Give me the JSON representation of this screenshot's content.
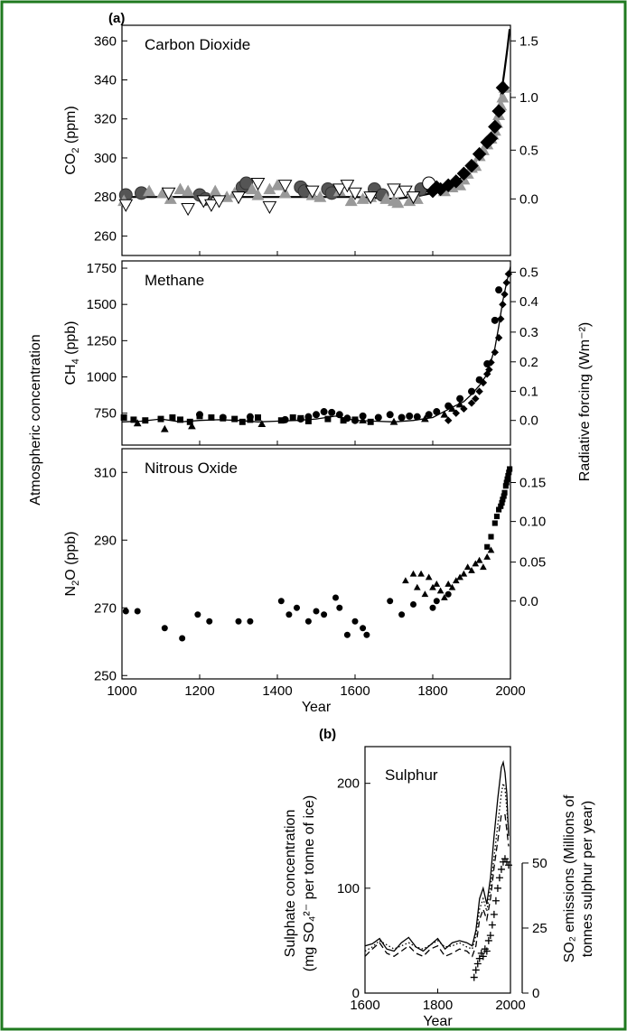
{
  "figure": {
    "frame_color": "#1f7a1f",
    "left_label": "Atmospheric concentration",
    "right_label": "Radiative forcing (Wm⁻²)"
  },
  "chart_data": [
    {
      "id": "co2",
      "panel_label": "(a)",
      "type": "scatter",
      "title": "Carbon Dioxide",
      "ylabel": "CO₂ (ppm)",
      "y2label": "",
      "xlim": [
        1000,
        2000
      ],
      "ylim": [
        250,
        368
      ],
      "yticks": [
        260,
        280,
        300,
        320,
        340,
        360
      ],
      "y2ticks": [
        {
          "label": "0.0",
          "y": 279
        },
        {
          "label": "0.5",
          "y": 304
        },
        {
          "label": "1.0",
          "y": 331
        },
        {
          "label": "1.5",
          "y": 360
        }
      ],
      "grid": false,
      "line": {
        "x": [
          1000,
          1200,
          1400,
          1600,
          1700,
          1750,
          1800,
          1850,
          1900,
          1925,
          1950,
          1965,
          1975,
          1985,
          1992,
          1998
        ],
        "y": [
          280,
          280,
          280,
          280,
          279,
          280,
          282,
          285,
          295,
          303,
          311,
          320,
          331,
          345,
          356,
          366
        ]
      },
      "series": [
        {
          "name": "",
          "marker": "circle",
          "color": "#555555",
          "x": [
            1010,
            1050,
            1200,
            1215,
            1310,
            1320,
            1460,
            1470,
            1530,
            1540,
            1650,
            1670,
            1770
          ],
          "y": [
            281,
            282,
            281,
            279,
            285,
            287,
            285,
            283,
            284,
            282,
            284,
            281,
            284
          ]
        },
        {
          "name": "",
          "marker": "triangle",
          "color": "#999999",
          "x": [
            1005,
            1070,
            1105,
            1125,
            1150,
            1170,
            1240,
            1270,
            1290,
            1335,
            1350,
            1380,
            1400,
            1420,
            1490,
            1510,
            1560,
            1590,
            1620,
            1640,
            1680,
            1700,
            1710,
            1740,
            1760,
            1830,
            1850,
            1860,
            1870,
            1880,
            1890,
            1900,
            1910,
            1920,
            1930,
            1940,
            1950,
            1955,
            1960,
            1965,
            1970,
            1975,
            1980,
            1985
          ],
          "y": [
            278,
            283,
            282,
            279,
            284,
            283,
            283,
            280,
            282,
            284,
            281,
            284,
            286,
            282,
            281,
            280,
            283,
            278,
            279,
            280,
            279,
            278,
            277,
            278,
            279,
            283,
            285,
            287,
            286,
            289,
            292,
            295,
            296,
            301,
            304,
            307,
            310,
            312,
            314,
            318,
            322,
            327,
            331,
            336
          ]
        },
        {
          "name": "",
          "marker": "triangle-down",
          "color": "#ffffff",
          "x": [
            1010,
            1120,
            1170,
            1210,
            1230,
            1250,
            1300,
            1350,
            1380,
            1420,
            1490,
            1560,
            1580,
            1600,
            1640,
            1700,
            1730,
            1750
          ],
          "y": [
            276,
            282,
            274,
            278,
            276,
            278,
            280,
            287,
            275,
            286,
            283,
            284,
            286,
            282,
            280,
            284,
            283,
            280
          ]
        },
        {
          "name": "",
          "marker": "circle-open",
          "color": "#ffffff",
          "x": [
            1790
          ],
          "y": [
            287
          ]
        },
        {
          "name": "",
          "marker": "diamond",
          "color": "#000000",
          "x": [
            1800,
            1810,
            1820,
            1840,
            1860,
            1880,
            1900,
            1920,
            1940,
            1950,
            1960,
            1970,
            1980
          ],
          "y": [
            283,
            285,
            284,
            286,
            288,
            292,
            296,
            302,
            308,
            310,
            316,
            324,
            336
          ]
        }
      ]
    },
    {
      "id": "ch4",
      "type": "scatter",
      "title": "Methane",
      "ylabel": "CH₄ (ppb)",
      "ylim": [
        530,
        1800
      ],
      "yticks": [
        750,
        1000,
        1250,
        1500,
        1750
      ],
      "y2ticks": [
        {
          "label": "0.0",
          "y": 700
        },
        {
          "label": "0.1",
          "y": 901
        },
        {
          "label": "0.2",
          "y": 1104
        },
        {
          "label": "0.3",
          "y": 1309
        },
        {
          "label": "0.4",
          "y": 1519
        },
        {
          "label": "0.5",
          "y": 1722
        }
      ],
      "grid": false,
      "line": {
        "x": [
          1000,
          1050,
          1100,
          1150,
          1200,
          1250,
          1300,
          1350,
          1400,
          1450,
          1500,
          1550,
          1600,
          1650,
          1700,
          1750,
          1800,
          1850,
          1880,
          1900,
          1920,
          1940,
          1960,
          1970,
          1980,
          1990,
          2000
        ],
        "y": [
          690,
          695,
          710,
          690,
          700,
          705,
          700,
          690,
          695,
          700,
          710,
          730,
          700,
          695,
          690,
          700,
          720,
          790,
          830,
          880,
          940,
          1020,
          1200,
          1350,
          1520,
          1650,
          1760
        ]
      },
      "series": [
        {
          "name": "",
          "marker": "square",
          "color": "#000000",
          "x": [
            1005,
            1030,
            1060,
            1100,
            1130,
            1150,
            1175,
            1200,
            1230,
            1260,
            1290,
            1310,
            1330,
            1350,
            1410,
            1440,
            1460,
            1480,
            1530,
            1570,
            1600,
            1640
          ],
          "y": [
            720,
            705,
            700,
            710,
            720,
            705,
            690,
            730,
            720,
            715,
            710,
            690,
            705,
            720,
            700,
            720,
            715,
            695,
            710,
            700,
            705,
            690
          ]
        },
        {
          "name": "",
          "marker": "triangle",
          "color": "#000000",
          "x": [
            1040,
            1110,
            1180,
            1360,
            1620,
            1700,
            1780,
            1830,
            1850,
            1870
          ],
          "y": [
            680,
            640,
            660,
            675,
            700,
            690,
            710,
            740,
            780,
            810
          ]
        },
        {
          "name": "",
          "marker": "circle",
          "color": "#000000",
          "x": [
            1200,
            1260,
            1330,
            1420,
            1460,
            1480,
            1500,
            1520,
            1540,
            1560,
            1580,
            1600,
            1620,
            1660,
            1690,
            1720,
            1740,
            1760,
            1790,
            1810,
            1840,
            1870,
            1900,
            1920,
            1940,
            1960,
            1970
          ],
          "y": [
            740,
            720,
            725,
            705,
            710,
            725,
            740,
            760,
            755,
            740,
            715,
            700,
            730,
            720,
            740,
            720,
            730,
            725,
            740,
            760,
            800,
            850,
            900,
            980,
            1090,
            1390,
            1600
          ]
        },
        {
          "name": "",
          "marker": "diamond",
          "color": "#000000",
          "x": [
            1840,
            1860,
            1880,
            1900,
            1910,
            1920,
            1930,
            1940,
            1945,
            1950,
            1960,
            1970,
            1975,
            1980,
            1985,
            1990,
            1995
          ],
          "y": [
            700,
            750,
            780,
            820,
            850,
            900,
            960,
            1020,
            1050,
            1100,
            1170,
            1270,
            1400,
            1500,
            1570,
            1650,
            1710
          ]
        }
      ]
    },
    {
      "id": "n2o",
      "type": "scatter",
      "title": "Nitrous Oxide",
      "ylabel": "N₂O (ppb)",
      "xlabel": "Year",
      "xticks": [
        1000,
        1200,
        1400,
        1600,
        1800,
        2000
      ],
      "ylim": [
        249,
        317
      ],
      "yticks": [
        250,
        270,
        290,
        310
      ],
      "y2ticks": [
        {
          "label": "0.0",
          "y": 272
        },
        {
          "label": "0.05",
          "y": 283.5
        },
        {
          "label": "0.10",
          "y": 295.5
        },
        {
          "label": "0.15",
          "y": 307
        }
      ],
      "grid": false,
      "series": [
        {
          "name": "",
          "marker": "circle",
          "color": "#000000",
          "x": [
            1010,
            1040,
            1110,
            1155,
            1195,
            1225,
            1300,
            1330,
            1410,
            1430,
            1450,
            1480,
            1500,
            1520,
            1550,
            1560,
            1580,
            1600,
            1620,
            1630,
            1690,
            1720,
            1750,
            1800,
            1810,
            1840
          ],
          "y": [
            269,
            269,
            264,
            261,
            268,
            266,
            266,
            266,
            272,
            268,
            270,
            266,
            269,
            268,
            273,
            270,
            262,
            266,
            264,
            262,
            272,
            268,
            271,
            270,
            272,
            274
          ]
        },
        {
          "name": "",
          "marker": "triangle",
          "color": "#000000",
          "x": [
            1730,
            1750,
            1760,
            1770,
            1780,
            1790,
            1800,
            1810,
            1820,
            1830,
            1840,
            1850,
            1860,
            1870,
            1880,
            1890,
            1900,
            1910,
            1920,
            1930,
            1940,
            1950
          ],
          "y": [
            278,
            280,
            276,
            280,
            274,
            279,
            276,
            277,
            275,
            273,
            277,
            276,
            278,
            279,
            280,
            282,
            281,
            283,
            284,
            282,
            285,
            287
          ]
        },
        {
          "name": "",
          "marker": "square",
          "color": "#000000",
          "x": [
            1940,
            1950,
            1960,
            1965,
            1970,
            1975,
            1978,
            1980,
            1983,
            1985,
            1988,
            1990,
            1992,
            1994,
            1996,
            1998
          ],
          "y": [
            288,
            291,
            295,
            297,
            299,
            300,
            301,
            302,
            303,
            304,
            306,
            307,
            308,
            309,
            310,
            311
          ]
        }
      ]
    },
    {
      "id": "so4",
      "panel_label": "(b)",
      "type": "line",
      "title": "Sulphur",
      "ylabel": "Sulphate concentration (mg SO₄²⁻ per tonne of ice)",
      "y2label": "SO₂ emissions (Millions of tonnes sulphur per year)",
      "xlabel": "Year",
      "xlim": [
        1600,
        2000
      ],
      "ylim": [
        0,
        235
      ],
      "xticks": [
        1600,
        1800,
        2000
      ],
      "yticks": [
        0,
        100,
        200
      ],
      "y2ticks": [
        {
          "label": "0",
          "y": 0
        },
        {
          "label": "25",
          "y": 62
        },
        {
          "label": "50",
          "y": 124
        }
      ],
      "grid": false,
      "series": [
        {
          "name": "",
          "style": "solid",
          "x": [
            1600,
            1620,
            1640,
            1660,
            1680,
            1700,
            1720,
            1740,
            1760,
            1780,
            1800,
            1820,
            1840,
            1860,
            1880,
            1895,
            1905,
            1915,
            1925,
            1935,
            1945,
            1955,
            1965,
            1975,
            1980,
            1985,
            1990,
            1995
          ],
          "y": [
            45,
            47,
            52,
            42,
            40,
            48,
            53,
            44,
            40,
            46,
            52,
            42,
            48,
            50,
            48,
            45,
            60,
            90,
            100,
            85,
            110,
            150,
            185,
            215,
            220,
            210,
            190,
            150
          ]
        },
        {
          "name": "",
          "style": "dotted",
          "x": [
            1600,
            1620,
            1640,
            1660,
            1680,
            1700,
            1720,
            1740,
            1760,
            1780,
            1800,
            1820,
            1840,
            1860,
            1880,
            1895,
            1905,
            1915,
            1925,
            1935,
            1945,
            1955,
            1965,
            1975,
            1980,
            1985,
            1990,
            1995
          ],
          "y": [
            40,
            44,
            50,
            46,
            42,
            45,
            48,
            44,
            42,
            46,
            50,
            44,
            45,
            48,
            44,
            42,
            55,
            80,
            90,
            78,
            100,
            130,
            160,
            190,
            200,
            195,
            175,
            150
          ]
        },
        {
          "name": "",
          "style": "dashed",
          "x": [
            1600,
            1620,
            1640,
            1660,
            1680,
            1700,
            1720,
            1740,
            1760,
            1780,
            1800,
            1820,
            1840,
            1860,
            1880,
            1895,
            1905,
            1915,
            1925,
            1935,
            1945,
            1955,
            1965,
            1975,
            1985,
            1995
          ],
          "y": [
            35,
            42,
            48,
            38,
            35,
            40,
            45,
            38,
            35,
            42,
            45,
            35,
            38,
            42,
            40,
            35,
            45,
            70,
            80,
            70,
            90,
            120,
            145,
            170,
            170,
            140
          ]
        },
        {
          "name": "",
          "style": "plus",
          "x": [
            1900,
            1905,
            1910,
            1915,
            1920,
            1925,
            1930,
            1935,
            1940,
            1945,
            1950,
            1955,
            1960,
            1965,
            1970,
            1975,
            1980,
            1985,
            1990,
            1995
          ],
          "y": [
            15,
            22,
            28,
            33,
            38,
            35,
            42,
            40,
            50,
            55,
            65,
            75,
            88,
            100,
            110,
            118,
            125,
            128,
            125,
            122
          ]
        }
      ]
    }
  ]
}
